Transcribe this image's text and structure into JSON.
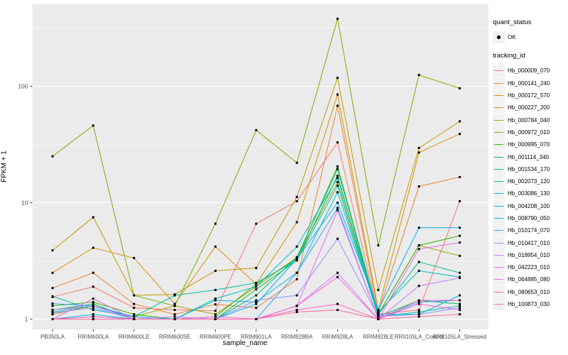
{
  "chart_data": {
    "type": "line",
    "title": "",
    "xlabel": "sample_name",
    "ylabel": "FPKM + 1",
    "y_scale": "log10",
    "ylim_decades": [
      -0.09,
      2.72
    ],
    "y_ticks": [
      1,
      10,
      100
    ],
    "y_tick_labels": [
      "1",
      "10",
      "100"
    ],
    "y_minor_decades": [
      0.5,
      1.5,
      2.5
    ],
    "grid": true,
    "panel_bg": "#EBEBEB",
    "grid_color": "#FFFFFF",
    "point_color": "#000000",
    "tick_label_color": "#4D4D4D",
    "legend_position": "right",
    "categories": [
      "PB350LA",
      "RRIM600LA",
      "RRIM600LE",
      "RRIM600SE",
      "RRIM600PE",
      "RRIM901LA",
      "RRIM928BA",
      "RRIM928LA",
      "RRIM928LE",
      "RRII105LA_Control",
      "RRII105LA_Stressed"
    ],
    "legend": {
      "quant_title": "quant_status",
      "quant_items": [
        {
          "label": "OK",
          "marker": "black-point"
        }
      ],
      "series_title": "tracking_id"
    },
    "series": [
      {
        "name": "Hb_000009_070",
        "color": "#F8766D",
        "values": [
          1.55,
          1.9,
          1.25,
          1.2,
          1.18,
          6.6,
          10.3,
          33,
          1.1,
          1.2,
          10.3
        ]
      },
      {
        "name": "Hb_000141_240",
        "color": "#EA8331",
        "values": [
          1.85,
          2.5,
          1.35,
          1.1,
          1.34,
          1.25,
          2.2,
          68,
          1.15,
          13.8,
          16.6
        ]
      },
      {
        "name": "Hb_000172_570",
        "color": "#D89000",
        "values": [
          2.5,
          4.1,
          3.35,
          1.35,
          4.2,
          2.0,
          6.8,
          85,
          1.2,
          27,
          39
        ]
      },
      {
        "name": "Hb_000227_200",
        "color": "#C09B00",
        "values": [
          3.9,
          7.5,
          1.6,
          1.63,
          2.6,
          2.75,
          11.2,
          118,
          1.78,
          29.5,
          50
        ]
      },
      {
        "name": "Hb_000784_040",
        "color": "#A3A500",
        "values": [
          1.1,
          1.3,
          1.05,
          1.3,
          1.1,
          1.9,
          3.4,
          15,
          1.1,
          4.3,
          3.5
        ]
      },
      {
        "name": "Hb_000972_010",
        "color": "#7CAE00",
        "values": [
          25,
          46,
          1.6,
          1.3,
          6.6,
          42,
          22,
          380,
          4.3,
          125,
          96
        ]
      },
      {
        "name": "Hb_000995_070",
        "color": "#39B600",
        "values": [
          1.3,
          1.4,
          1.1,
          1.0,
          1.05,
          2.0,
          3.3,
          20.5,
          1.1,
          4.3,
          5.2
        ]
      },
      {
        "name": "Hb_001114_340",
        "color": "#00BB4E",
        "values": [
          1.2,
          1.35,
          1.0,
          1.0,
          1.0,
          1.8,
          3.2,
          17,
          1.05,
          1.45,
          1.35
        ]
      },
      {
        "name": "Hb_001534_170",
        "color": "#00C087",
        "values": [
          1.15,
          1.3,
          1.05,
          1.0,
          1.0,
          1.6,
          3.4,
          19.4,
          1.1,
          3.1,
          2.5
        ]
      },
      {
        "name": "Hb_002073_120",
        "color": "#00C1A3",
        "values": [
          1.57,
          1.2,
          1.05,
          1.6,
          1.78,
          2.05,
          3.2,
          14,
          1.05,
          1.15,
          1.3
        ]
      },
      {
        "name": "Hb_003086_130",
        "color": "#00BFC4",
        "values": [
          1.0,
          1.05,
          1.0,
          1.0,
          1.5,
          1.9,
          4.2,
          16.3,
          1.15,
          2.6,
          2.3
        ]
      },
      {
        "name": "Hb_004208_100",
        "color": "#00BAE0",
        "values": [
          1.0,
          1.1,
          1.0,
          1.0,
          1.45,
          1.4,
          2.5,
          12.3,
          1.1,
          1.1,
          1.6
        ]
      },
      {
        "name": "Hb_008790_050",
        "color": "#00B0F6",
        "values": [
          1.2,
          1.3,
          1.0,
          1.0,
          1.0,
          1.35,
          3.3,
          10,
          1.2,
          6.1,
          6.1
        ]
      },
      {
        "name": "Hb_010174_070",
        "color": "#35A2FF",
        "values": [
          1.36,
          1.3,
          1.05,
          1.0,
          1.0,
          1.0,
          2.5,
          9,
          1.0,
          1.4,
          1.45
        ]
      },
      {
        "name": "Hb_010417_010",
        "color": "#9590FF",
        "values": [
          1.13,
          1.25,
          1.0,
          1.0,
          1.0,
          1.45,
          1.6,
          4.9,
          1.05,
          1.1,
          1.25
        ]
      },
      {
        "name": "Hb_018954_010",
        "color": "#C77CFF",
        "values": [
          1.2,
          1.3,
          1.0,
          1.05,
          1.0,
          1.0,
          1.3,
          2.5,
          1.0,
          1.93,
          2.26
        ]
      },
      {
        "name": "Hb_042223_010",
        "color": "#E76BF3",
        "values": [
          1.0,
          1.5,
          1.0,
          1.0,
          1.0,
          1.0,
          1.3,
          8.6,
          1.0,
          4.0,
          4.55
        ]
      },
      {
        "name": "Hb_064885_080",
        "color": "#FA62DB",
        "values": [
          1.0,
          1.0,
          1.0,
          1.0,
          1.05,
          1.0,
          1.3,
          2.3,
          1.0,
          1.35,
          1.2
        ]
      },
      {
        "name": "Hb_080653_010",
        "color": "#FF62BC",
        "values": [
          1.0,
          1.05,
          1.0,
          1.0,
          1.0,
          1.0,
          1.2,
          1.35,
          1.0,
          1.45,
          1.45
        ]
      },
      {
        "name": "Hb_100873_030",
        "color": "#FF6A98",
        "values": [
          1.0,
          1.0,
          1.0,
          1.0,
          1.0,
          1.0,
          1.15,
          1.2,
          1.0,
          1.05,
          1.1
        ]
      }
    ]
  }
}
